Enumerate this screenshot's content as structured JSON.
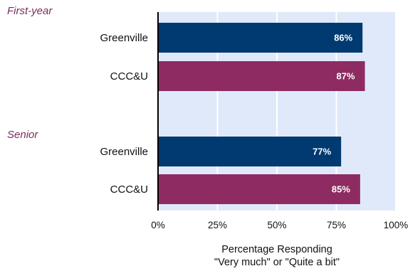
{
  "chart_data": {
    "type": "bar",
    "orientation": "horizontal",
    "groups": [
      {
        "label": "First-year",
        "bars": [
          {
            "category": "Greenville",
            "value": 86,
            "label": "86%",
            "color": "#003a70"
          },
          {
            "category": "CCC&U",
            "value": 87,
            "label": "87%",
            "color": "#8e2b63"
          }
        ]
      },
      {
        "label": "Senior",
        "bars": [
          {
            "category": "Greenville",
            "value": 77,
            "label": "77%",
            "color": "#003a70"
          },
          {
            "category": "CCC&U",
            "value": 85,
            "label": "85%",
            "color": "#8e2b63"
          }
        ]
      }
    ],
    "xlabel_lines": [
      "Percentage Responding",
      "\"Very much\" or \"Quite a bit\""
    ],
    "xlim": [
      0,
      100
    ],
    "ticks": [
      0,
      25,
      50,
      75,
      100
    ],
    "tick_labels": [
      "0%",
      "25%",
      "50%",
      "75%",
      "100%"
    ],
    "plot_background": "#dfe9f9",
    "group_label_color": "#7b2b5e",
    "grid": true
  }
}
